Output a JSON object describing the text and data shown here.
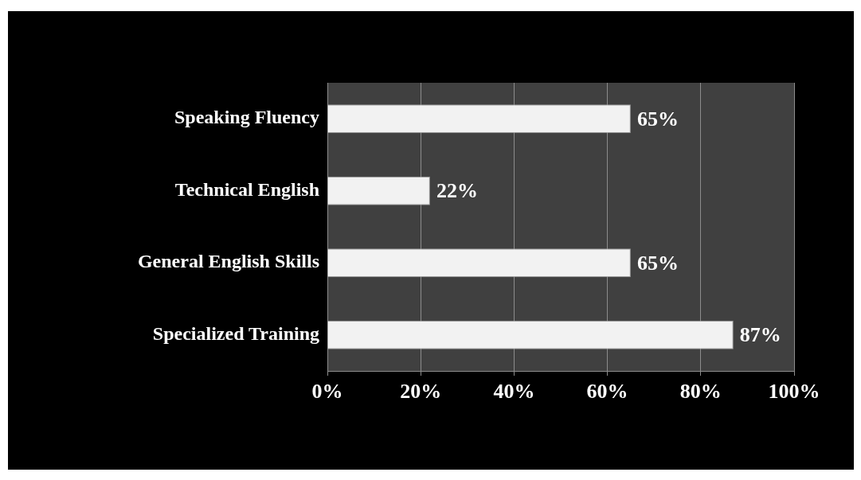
{
  "chart_data": {
    "type": "bar",
    "orientation": "horizontal",
    "categories": [
      "Speaking Fluency",
      "Technical English",
      "General English Skills",
      "Specialized Training"
    ],
    "values": [
      65,
      22,
      65,
      87
    ],
    "color": "#f2f2f2",
    "value_labels": [
      "65%",
      "22%",
      "65%",
      "87%"
    ],
    "xlim": [
      0,
      100
    ],
    "xticks": [
      {
        "value": 0,
        "label": "0%"
      },
      {
        "value": 20,
        "label": "20%"
      },
      {
        "value": 40,
        "label": "40%"
      },
      {
        "value": 60,
        "label": "60%"
      },
      {
        "value": 80,
        "label": "80%"
      },
      {
        "value": 100,
        "label": "100%"
      }
    ],
    "grid": "x",
    "legend": false
  }
}
